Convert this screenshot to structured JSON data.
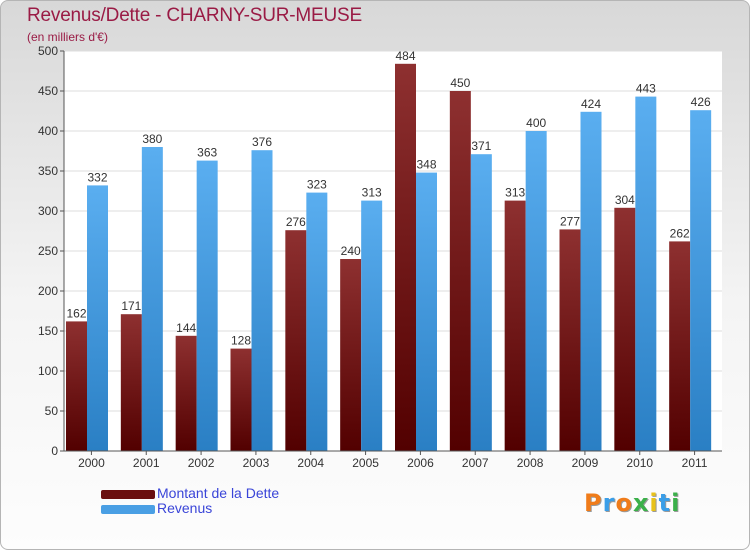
{
  "title": "Revenus/Dette - CHARNY-SUR-MEUSE",
  "subtitle": "(en milliers d'€)",
  "colors": {
    "title": "#9a1b45",
    "dette_top": "#8e3030",
    "dette_bottom": "#520000",
    "revenus_top": "#5aaef0",
    "revenus_bottom": "#2a7fc4",
    "legend_text": "#3a45d8"
  },
  "legend": [
    {
      "label": "Montant de la Dette",
      "color": "#6a0f0f"
    },
    {
      "label": "Revenus",
      "color": "#4a9fe4"
    }
  ],
  "logo": {
    "letters": [
      "P",
      "r",
      "o",
      "x",
      "i",
      "t",
      "i"
    ],
    "colors": [
      "#f07c1a",
      "#3a9ee8",
      "#f07c1a",
      "#3bb04a",
      "#e8c21a",
      "#3a9ee8",
      "#3bb04a"
    ]
  },
  "chart_data": {
    "type": "bar",
    "categories": [
      "2000",
      "2001",
      "2002",
      "2003",
      "2004",
      "2005",
      "2006",
      "2007",
      "2008",
      "2009",
      "2010",
      "2011"
    ],
    "series": [
      {
        "name": "Montant de la Dette",
        "values": [
          162,
          171,
          144,
          128,
          276,
          240,
          484,
          450,
          313,
          277,
          304,
          262
        ]
      },
      {
        "name": "Revenus",
        "values": [
          332,
          380,
          363,
          376,
          323,
          313,
          348,
          371,
          400,
          424,
          443,
          426
        ]
      }
    ],
    "ylim": [
      0,
      500
    ],
    "yticks": [
      0,
      50,
      100,
      150,
      200,
      250,
      300,
      350,
      400,
      450,
      500
    ],
    "grid": true,
    "legend_position": "bottom-left"
  }
}
